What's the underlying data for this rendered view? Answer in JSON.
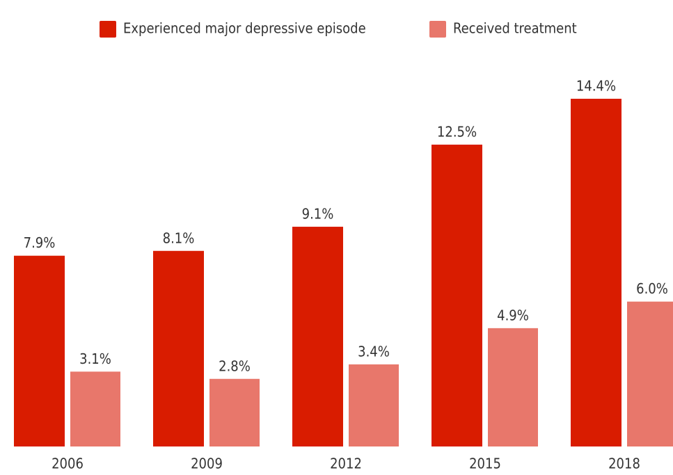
{
  "chart_data": {
    "type": "bar",
    "categories": [
      "2006",
      "2009",
      "2012",
      "2015",
      "2018"
    ],
    "series": [
      {
        "name": "Experienced major depressive episode",
        "color": "#d91c00",
        "values": [
          7.9,
          8.1,
          9.1,
          12.5,
          14.4
        ],
        "value_labels": [
          "7.9%",
          "8.1%",
          "9.1%",
          "12.5%",
          "14.4%"
        ]
      },
      {
        "name": "Received treatment",
        "color": "#e8776b",
        "values": [
          3.1,
          2.8,
          3.4,
          4.9,
          6.0
        ],
        "value_labels": [
          "3.1%",
          "2.8%",
          "3.4%",
          "4.9%",
          "6.0%"
        ]
      }
    ]
  }
}
